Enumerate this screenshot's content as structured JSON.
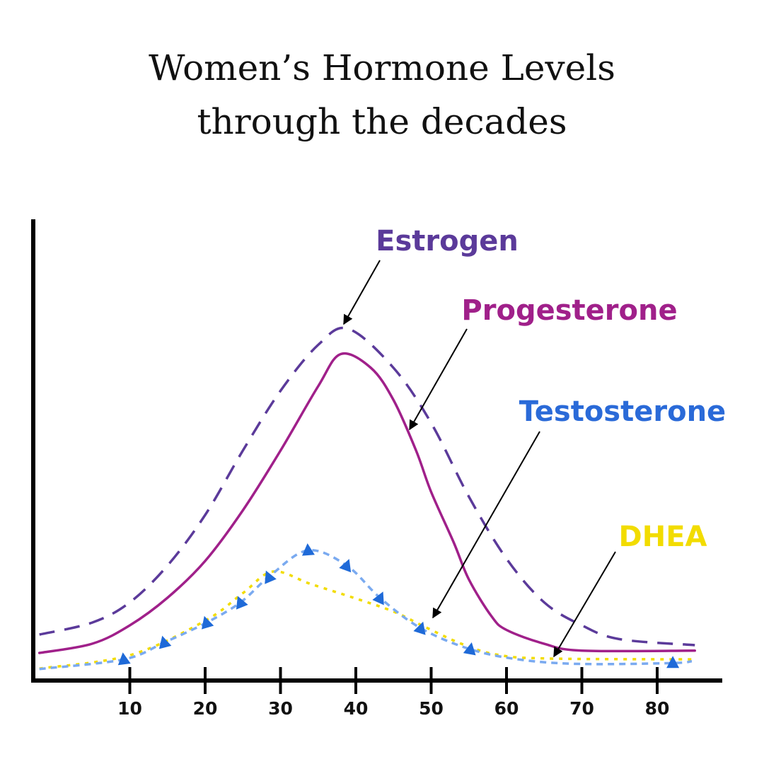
{
  "chart_data": {
    "type": "line",
    "title_lines": [
      "Women’s Hormone Levels",
      "through the decades"
    ],
    "xlabel": "",
    "ylabel": "",
    "xlim": [
      -3,
      88
    ],
    "ylim": [
      0,
      100
    ],
    "x_ticks": [
      10,
      20,
      30,
      40,
      50,
      60,
      70,
      80
    ],
    "y_ticks": [],
    "grid": false,
    "legend": "annotations with arrows",
    "series": [
      {
        "name": "Estrogen",
        "color": "#5b3a9a",
        "style": "dashed",
        "points": [
          [
            -2,
            10
          ],
          [
            5,
            12.6
          ],
          [
            10,
            17
          ],
          [
            15,
            25
          ],
          [
            20,
            36
          ],
          [
            25,
            50
          ],
          [
            30,
            63
          ],
          [
            35,
            73
          ],
          [
            39,
            76.5
          ],
          [
            45,
            68
          ],
          [
            50,
            56
          ],
          [
            55,
            40
          ],
          [
            60,
            26.5
          ],
          [
            65,
            17
          ],
          [
            70,
            12
          ],
          [
            75,
            9
          ],
          [
            85,
            7.7
          ]
        ]
      },
      {
        "name": "Progesterone",
        "color": "#a0208a",
        "style": "solid",
        "points": [
          [
            -2,
            6
          ],
          [
            5,
            8
          ],
          [
            10,
            12
          ],
          [
            15,
            18
          ],
          [
            20,
            26
          ],
          [
            25,
            37
          ],
          [
            30,
            50
          ],
          [
            35,
            64
          ],
          [
            38,
            71
          ],
          [
            42,
            68
          ],
          [
            45,
            61
          ],
          [
            48,
            50
          ],
          [
            50,
            41
          ],
          [
            53,
            30
          ],
          [
            55,
            22
          ],
          [
            58,
            14
          ],
          [
            60,
            11
          ],
          [
            65,
            8
          ],
          [
            70,
            6.5
          ],
          [
            85,
            6.5
          ]
        ]
      },
      {
        "name": "Testosterone",
        "color": "#7aaaf0",
        "marker_color": "#1f6ad8",
        "style": "dashed-triangles",
        "points": [
          [
            -2,
            2.5
          ],
          [
            9.2,
            4.6
          ],
          [
            14.6,
            8.3
          ],
          [
            20.2,
            12.6
          ],
          [
            24.7,
            17
          ],
          [
            28.5,
            22.6
          ],
          [
            33.6,
            28.3
          ],
          [
            38.8,
            25
          ],
          [
            43.2,
            18
          ],
          [
            48.6,
            11.4
          ],
          [
            55.2,
            6.8
          ],
          [
            62,
            4.5
          ],
          [
            70,
            3.6
          ],
          [
            82,
            3.8
          ],
          [
            84.6,
            4.2
          ]
        ],
        "markers_at": [
          9.2,
          14.6,
          20.2,
          24.7,
          28.5,
          33.6,
          38.8,
          43.2,
          48.6,
          55.2,
          82
        ]
      },
      {
        "name": "DHEA",
        "color": "#f2dc00",
        "style": "dotted",
        "points": [
          [
            -2,
            2.6
          ],
          [
            10,
            5.5
          ],
          [
            20,
            13
          ],
          [
            25,
            19
          ],
          [
            29,
            23.7
          ],
          [
            34,
            21
          ],
          [
            39.7,
            18
          ],
          [
            45,
            15
          ],
          [
            49,
            11.8
          ],
          [
            54,
            8
          ],
          [
            58.5,
            5.7
          ],
          [
            65,
            4.8
          ],
          [
            85,
            4.6
          ]
        ]
      }
    ]
  }
}
